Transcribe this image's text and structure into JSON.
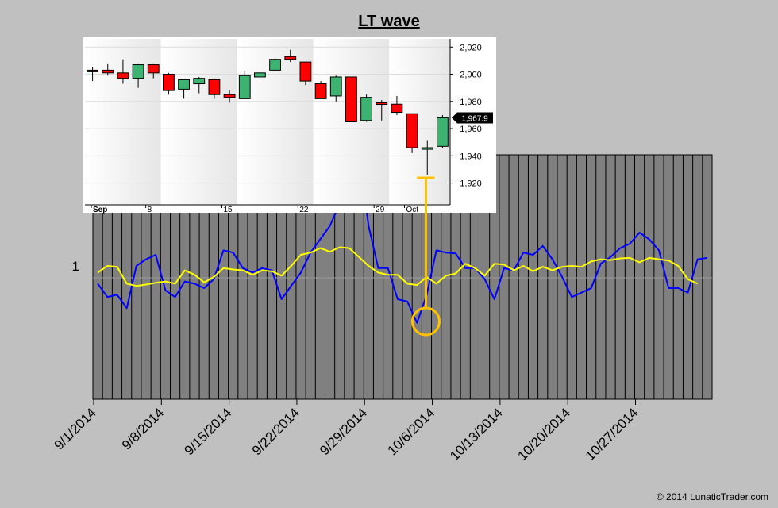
{
  "title": "LT wave",
  "copyright": "© 2014 LunaticTrader.com",
  "colors": {
    "background": "#c0c0c0",
    "plot_background": "#808080",
    "blue_line": "#0000ff",
    "yellow_line": "#ffff00",
    "marker": "#ffc000",
    "candle_up": "#3cb371",
    "candle_down": "#ff0000"
  },
  "chart_data": [
    {
      "type": "line",
      "x_tick_labels": [
        "9/1/2014",
        "9/8/2014",
        "9/15/2014",
        "9/22/2014",
        "9/29/2014",
        "10/6/2014",
        "10/13/2014",
        "10/20/2014",
        "10/27/2014"
      ],
      "y_tick_labels": [
        "1"
      ],
      "ylim": [
        0.7,
        1.25
      ],
      "grid": "vertical bars on",
      "series": [
        {
          "color": "#0000ff",
          "values": [
            0.96,
            0.93,
            0.935,
            0.905,
            1.0,
            1.015,
            1.025,
            0.945,
            0.93,
            0.965,
            0.96,
            0.95,
            0.97,
            1.035,
            1.03,
            0.995,
            0.985,
            0.995,
            0.99,
            0.925,
            0.955,
            0.985,
            1.03,
            1.06,
            1.09,
            1.14,
            1.26,
            1.25,
            1.09,
            0.995,
            0.995,
            0.925,
            0.92,
            0.872,
            0.935,
            1.035,
            1.03,
            1.028,
            0.995,
            0.995,
            0.97,
            0.925,
            0.995,
            0.99,
            1.03,
            1.025,
            1.045,
            1.015,
            0.975,
            0.93,
            0.94,
            0.95,
            1.005,
            1.02,
            1.04,
            1.05,
            1.075,
            1.06,
            1.035,
            0.95,
            0.95,
            0.94,
            1.015,
            1.018
          ]
        },
        {
          "color": "#ffff00",
          "values": [
            0.985,
            1.0,
            0.998,
            0.96,
            0.955,
            0.958,
            0.962,
            0.965,
            0.96,
            0.99,
            0.98,
            0.963,
            0.975,
            0.995,
            0.992,
            0.99,
            0.98,
            0.99,
            0.988,
            0.978,
            1.0,
            1.025,
            1.03,
            1.04,
            1.032,
            1.042,
            1.04,
            1.02,
            1.0,
            0.985,
            0.98,
            0.98,
            0.96,
            0.957,
            0.975,
            0.96,
            0.978,
            0.983,
            1.005,
            0.995,
            0.978,
            1.005,
            1.003,
            0.99,
            1.0,
            0.988,
            0.998,
            0.99,
            0.998,
            1.0,
            0.998,
            1.01,
            1.015,
            1.013,
            1.017,
            1.018,
            1.008,
            1.018,
            1.015,
            1.012,
            1.0,
            0.97,
            0.96
          ]
        }
      ],
      "annotation": {
        "type": "circle",
        "index": 34,
        "y": 0.875
      }
    },
    {
      "type": "candlestick",
      "x_tick_labels": [
        "Sep",
        "8",
        "15",
        "22",
        "29",
        "Oct"
      ],
      "y_tick_labels": [
        "2,020",
        "2,000",
        "1,980",
        "1,960",
        "1,940",
        "1,920"
      ],
      "ylim": [
        1904,
        2026
      ],
      "last_price_label": "1,967.9",
      "candles": [
        {
          "o": 2003,
          "h": 2005,
          "l": 1995,
          "c": 2002
        },
        {
          "o": 2003,
          "h": 2008,
          "l": 1999,
          "c": 2001
        },
        {
          "o": 2001,
          "h": 2011,
          "l": 1993,
          "c": 1997
        },
        {
          "o": 1997,
          "h": 2008,
          "l": 1990,
          "c": 2007
        },
        {
          "o": 2007,
          "h": 2008,
          "l": 1997,
          "c": 2001
        },
        {
          "o": 2000,
          "h": 2001,
          "l": 1985,
          "c": 1988
        },
        {
          "o": 1989,
          "h": 1996,
          "l": 1982,
          "c": 1996
        },
        {
          "o": 1993,
          "h": 1998,
          "l": 1986,
          "c": 1997
        },
        {
          "o": 1996,
          "h": 1997,
          "l": 1982,
          "c": 1985
        },
        {
          "o": 1985,
          "h": 1988,
          "l": 1979,
          "c": 1983
        },
        {
          "o": 1982,
          "h": 2002,
          "l": 1982,
          "c": 1999
        },
        {
          "o": 1998,
          "h": 2001,
          "l": 1998,
          "c": 2001
        },
        {
          "o": 2003,
          "h": 2012,
          "l": 2002,
          "c": 2011
        },
        {
          "o": 2013,
          "h": 2018,
          "l": 2009,
          "c": 2011
        },
        {
          "o": 2009,
          "h": 2009,
          "l": 1992,
          "c": 1995
        },
        {
          "o": 1993,
          "h": 1995,
          "l": 1982,
          "c": 1982
        },
        {
          "o": 1984,
          "h": 1999,
          "l": 1980,
          "c": 1998
        },
        {
          "o": 1998,
          "h": 1998,
          "l": 1965,
          "c": 1965
        },
        {
          "o": 1966,
          "h": 1985,
          "l": 1965,
          "c": 1983
        },
        {
          "o": 1979,
          "h": 1981,
          "l": 1966,
          "c": 1978
        },
        {
          "o": 1978,
          "h": 1984,
          "l": 1970,
          "c": 1972
        },
        {
          "o": 1971,
          "h": 1971,
          "l": 1942,
          "c": 1946
        },
        {
          "o": 1946,
          "h": 1951,
          "l": 1926,
          "c": 1946
        },
        {
          "o": 1947,
          "h": 1970,
          "l": 1946,
          "c": 1968
        }
      ]
    }
  ]
}
